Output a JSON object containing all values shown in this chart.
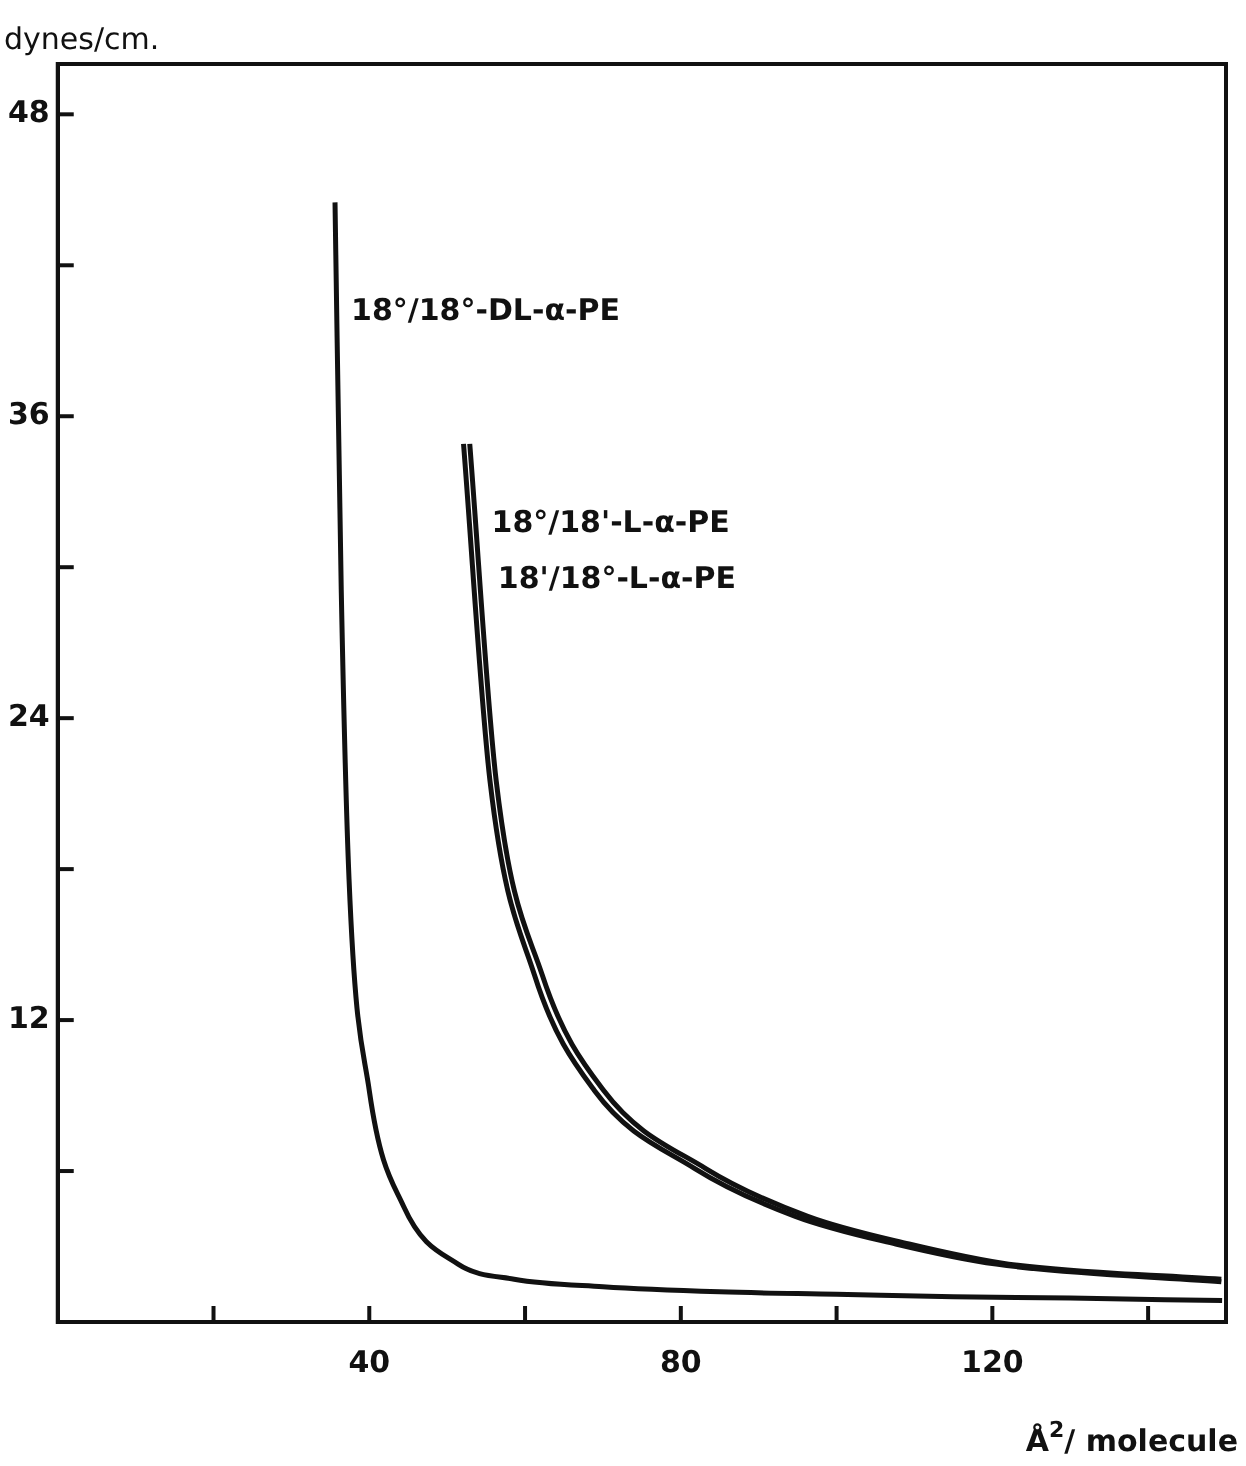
{
  "chart_data": {
    "type": "line",
    "xlabel": "Å$^{2}$/ molecule",
    "ylabel": "dynes/cm.",
    "series": [
      {
        "name": "18°/18°-DL-α-PE",
        "color": "#111111",
        "x": [
          35.6,
          36.4,
          37.4,
          40,
          44.4,
          51.4,
          58.6,
          70,
          85,
          100,
          115,
          130,
          149.5
        ],
        "values": [
          44.5,
          29.1,
          17.6,
          9.2,
          4.6,
          2.3,
          1.7,
          1.4,
          1.2,
          1.1,
          1.0,
          0.95,
          0.85
        ]
      },
      {
        "name": "18°/18'-L-α-PE",
        "color": "#111111",
        "x": [
          52.1,
          55.5,
          61.2,
          68.9,
          81.8,
          94.7,
          107.6,
          120.5,
          149.4
        ],
        "values": [
          34.9,
          21.5,
          13.8,
          9.2,
          6.1,
          4.2,
          3.1,
          2.3,
          1.6
        ]
      },
      {
        "name": "18'/18°-L-α-PE",
        "color": "#111111",
        "x": [
          52.9,
          56.3,
          62.2,
          70.1,
          83.2,
          96.3,
          109.3,
          122.1,
          149.4
        ],
        "values": [
          34.9,
          21.5,
          13.8,
          9.2,
          6.1,
          4.2,
          3.1,
          2.3,
          1.7
        ]
      }
    ],
    "xlim": [
      0,
      150
    ],
    "xticks": [
      {
        "value": 20,
        "label": null
      },
      40,
      {
        "value": 60,
        "label": null
      },
      80,
      {
        "value": 100,
        "label": null
      },
      120,
      {
        "value": 140,
        "label": null
      }
    ],
    "ylim": [
      0,
      50
    ],
    "yticks": [
      {
        "value": 6,
        "label": null
      },
      12,
      {
        "value": 18,
        "label": null
      },
      24,
      {
        "value": 30,
        "label": null
      },
      36,
      {
        "value": 42,
        "label": null
      },
      48
    ],
    "grid": false,
    "legend": false,
    "marker": "none",
    "line_style": "solid"
  }
}
